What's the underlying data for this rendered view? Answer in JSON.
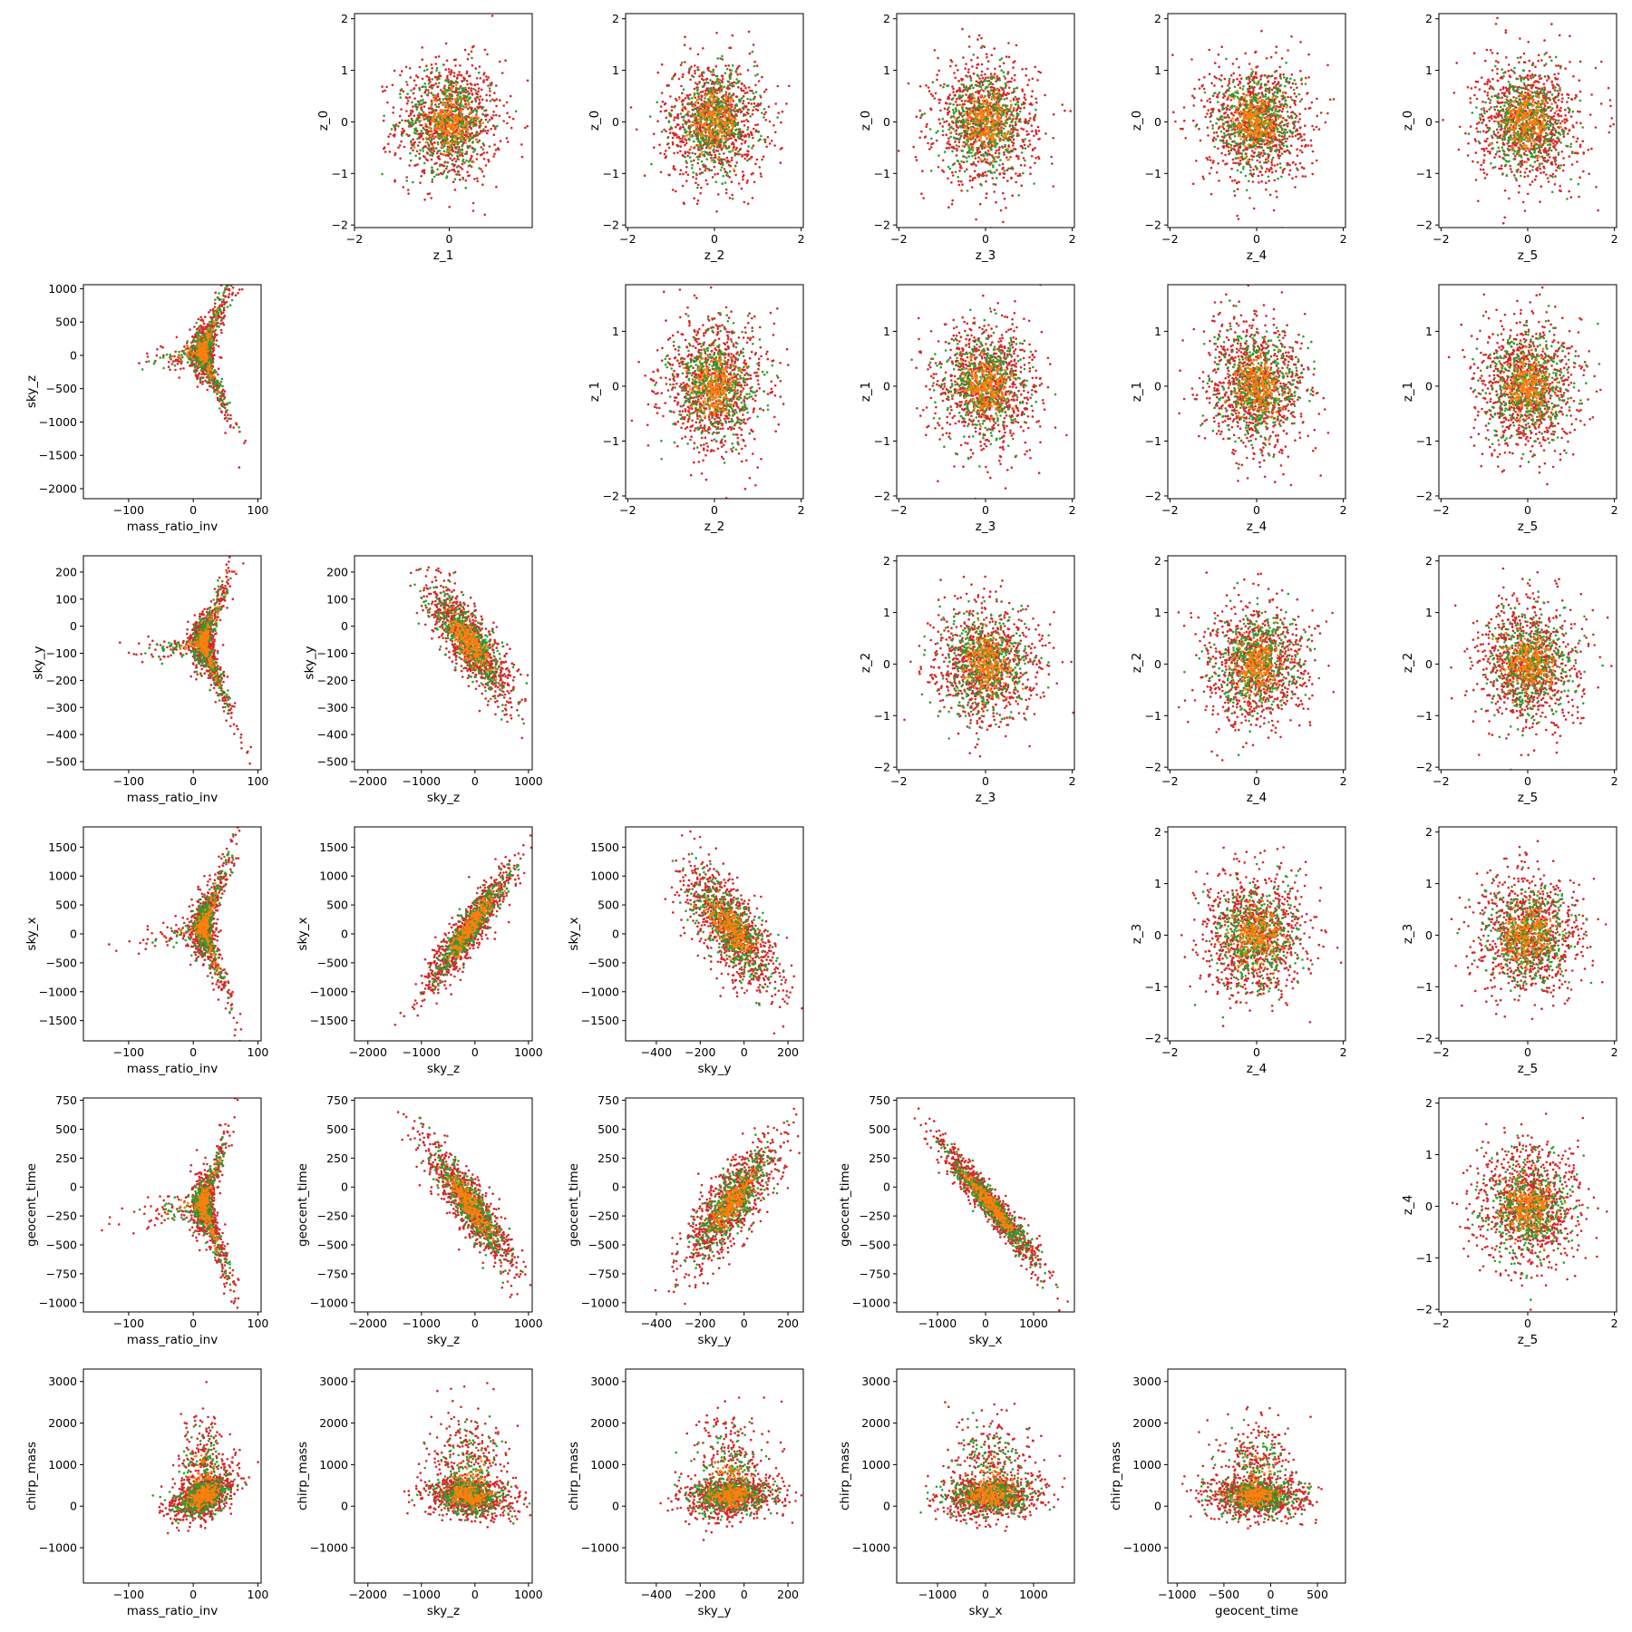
{
  "figure": {
    "type": "scatter",
    "layout": "pair-plot grid, 6 rows x 6 columns; diagonal panels empty",
    "series_colors": {
      "green": "#2ca02c",
      "orange": "#ff7f0e",
      "red": "#d62728"
    },
    "grid": false
  },
  "chart_data": [
    {
      "type": "scatter",
      "row": 0,
      "col": 1,
      "xlabel": "z_1",
      "ylabel": "z_0",
      "xlim": [
        -2,
        1.75
      ],
      "ylim": [
        -2.05,
        2.1
      ],
      "xticks": [
        -2,
        0
      ],
      "yticks": [
        -2,
        -1,
        0,
        1,
        2
      ],
      "x_mean": 0,
      "y_mean": 0,
      "x_spread": 0.55,
      "y_spread": 0.6,
      "rho": 0,
      "shape": "isotropic-gaussian"
    },
    {
      "type": "scatter",
      "row": 0,
      "col": 2,
      "xlabel": "z_2",
      "ylabel": "z_0",
      "xlim": [
        -2.05,
        2.05
      ],
      "ylim": [
        -2.05,
        2.1
      ],
      "xticks": [
        -2,
        0,
        2
      ],
      "yticks": [
        -2,
        -1,
        0,
        1,
        2
      ],
      "x_mean": 0,
      "y_mean": 0,
      "x_spread": 0.6,
      "y_spread": 0.6,
      "rho": 0,
      "shape": "isotropic-gaussian"
    },
    {
      "type": "scatter",
      "row": 0,
      "col": 3,
      "xlabel": "z_3",
      "ylabel": "z_0",
      "xlim": [
        -2.05,
        2.05
      ],
      "ylim": [
        -2.05,
        2.1
      ],
      "xticks": [
        -2,
        0,
        2
      ],
      "yticks": [
        -2,
        -1,
        0,
        1,
        2
      ],
      "x_mean": 0,
      "y_mean": 0,
      "x_spread": 0.6,
      "y_spread": 0.6,
      "rho": 0,
      "shape": "isotropic-gaussian"
    },
    {
      "type": "scatter",
      "row": 0,
      "col": 4,
      "xlabel": "z_4",
      "ylabel": "z_0",
      "xlim": [
        -2.05,
        2.05
      ],
      "ylim": [
        -2.05,
        2.1
      ],
      "xticks": [
        -2,
        0,
        2
      ],
      "yticks": [
        -2,
        -1,
        0,
        1,
        2
      ],
      "x_mean": 0,
      "y_mean": 0,
      "x_spread": 0.6,
      "y_spread": 0.6,
      "rho": 0,
      "shape": "isotropic-gaussian"
    },
    {
      "type": "scatter",
      "row": 0,
      "col": 5,
      "xlabel": "z_5",
      "ylabel": "z_0",
      "xlim": [
        -2.05,
        2.05
      ],
      "ylim": [
        -2.05,
        2.1
      ],
      "xticks": [
        -2,
        0,
        2
      ],
      "yticks": [
        -2,
        -1,
        0,
        1,
        2
      ],
      "x_mean": 0,
      "y_mean": 0,
      "x_spread": 0.6,
      "y_spread": 0.6,
      "rho": 0,
      "shape": "isotropic-gaussian"
    },
    {
      "type": "scatter",
      "row": 1,
      "col": 0,
      "xlabel": "mass_ratio_inv",
      "ylabel": "sky_z",
      "xlim": [
        -170,
        105
      ],
      "ylim": [
        -2150,
        1060
      ],
      "xticks": [
        -100,
        0,
        100
      ],
      "yticks": [
        -2000,
        -1500,
        -1000,
        -500,
        0,
        500,
        1000
      ],
      "x_mean": 15,
      "y_mean": 50,
      "x_spread": 25,
      "y_spread": 430,
      "rho": 0.1,
      "shape": "three-arm"
    },
    {
      "type": "scatter",
      "row": 1,
      "col": 2,
      "xlabel": "z_2",
      "ylabel": "z_1",
      "xlim": [
        -2.05,
        2.05
      ],
      "ylim": [
        -2.05,
        1.85
      ],
      "xticks": [
        -2,
        0,
        2
      ],
      "yticks": [
        -2,
        -1,
        0,
        1
      ],
      "x_mean": 0,
      "y_mean": 0,
      "x_spread": 0.6,
      "y_spread": 0.6,
      "rho": 0,
      "shape": "isotropic-gaussian"
    },
    {
      "type": "scatter",
      "row": 1,
      "col": 3,
      "xlabel": "z_3",
      "ylabel": "z_1",
      "xlim": [
        -2.05,
        2.05
      ],
      "ylim": [
        -2.05,
        1.85
      ],
      "xticks": [
        -2,
        0,
        2
      ],
      "yticks": [
        -2,
        -1,
        0,
        1
      ],
      "x_mean": 0,
      "y_mean": 0,
      "x_spread": 0.6,
      "y_spread": 0.6,
      "rho": 0,
      "shape": "isotropic-gaussian"
    },
    {
      "type": "scatter",
      "row": 1,
      "col": 4,
      "xlabel": "z_4",
      "ylabel": "z_1",
      "xlim": [
        -2.05,
        2.05
      ],
      "ylim": [
        -2.05,
        1.85
      ],
      "xticks": [
        -2,
        0,
        2
      ],
      "yticks": [
        -2,
        -1,
        0,
        1
      ],
      "x_mean": 0,
      "y_mean": 0,
      "x_spread": 0.6,
      "y_spread": 0.6,
      "rho": 0,
      "shape": "isotropic-gaussian"
    },
    {
      "type": "scatter",
      "row": 1,
      "col": 5,
      "xlabel": "z_5",
      "ylabel": "z_1",
      "xlim": [
        -2.05,
        2.05
      ],
      "ylim": [
        -2.05,
        1.85
      ],
      "xticks": [
        -2,
        0,
        2
      ],
      "yticks": [
        -2,
        -1,
        0,
        1
      ],
      "x_mean": 0,
      "y_mean": 0,
      "x_spread": 0.6,
      "y_spread": 0.6,
      "rho": 0,
      "shape": "isotropic-gaussian"
    },
    {
      "type": "scatter",
      "row": 2,
      "col": 0,
      "xlabel": "mass_ratio_inv",
      "ylabel": "sky_y",
      "xlim": [
        -170,
        105
      ],
      "ylim": [
        -530,
        260
      ],
      "xticks": [
        -100,
        0,
        100
      ],
      "yticks": [
        -500,
        -400,
        -300,
        -200,
        -100,
        0,
        100,
        200
      ],
      "x_mean": 15,
      "y_mean": -60,
      "x_spread": 25,
      "y_spread": 110,
      "rho": -0.5,
      "shape": "three-arm"
    },
    {
      "type": "scatter",
      "row": 2,
      "col": 1,
      "xlabel": "sky_z",
      "ylabel": "sky_y",
      "xlim": [
        -2250,
        1070
      ],
      "ylim": [
        -530,
        260
      ],
      "xticks": [
        -2000,
        -1000,
        0,
        1000
      ],
      "yticks": [
        -500,
        -400,
        -300,
        -200,
        -100,
        0,
        100,
        200
      ],
      "x_mean": -100,
      "y_mean": -60,
      "x_spread": 420,
      "y_spread": 110,
      "rho": -0.8,
      "shape": "correlated"
    },
    {
      "type": "scatter",
      "row": 2,
      "col": 3,
      "xlabel": "z_3",
      "ylabel": "z_2",
      "xlim": [
        -2.05,
        2.05
      ],
      "ylim": [
        -2.05,
        2.1
      ],
      "xticks": [
        -2,
        0,
        2
      ],
      "yticks": [
        -2,
        -1,
        0,
        1,
        2
      ],
      "x_mean": 0,
      "y_mean": 0,
      "x_spread": 0.6,
      "y_spread": 0.6,
      "rho": 0,
      "shape": "isotropic-gaussian"
    },
    {
      "type": "scatter",
      "row": 2,
      "col": 4,
      "xlabel": "z_4",
      "ylabel": "z_2",
      "xlim": [
        -2.05,
        2.05
      ],
      "ylim": [
        -2.05,
        2.1
      ],
      "xticks": [
        -2,
        0,
        2
      ],
      "yticks": [
        -2,
        -1,
        0,
        1,
        2
      ],
      "x_mean": 0,
      "y_mean": 0,
      "x_spread": 0.6,
      "y_spread": 0.6,
      "rho": 0,
      "shape": "isotropic-gaussian"
    },
    {
      "type": "scatter",
      "row": 2,
      "col": 5,
      "xlabel": "z_5",
      "ylabel": "z_2",
      "xlim": [
        -2.05,
        2.05
      ],
      "ylim": [
        -2.05,
        2.1
      ],
      "xticks": [
        -2,
        0,
        2
      ],
      "yticks": [
        -2,
        -1,
        0,
        1,
        2
      ],
      "x_mean": 0,
      "y_mean": 0,
      "x_spread": 0.6,
      "y_spread": 0.6,
      "rho": 0,
      "shape": "isotropic-gaussian"
    },
    {
      "type": "scatter",
      "row": 3,
      "col": 0,
      "xlabel": "mass_ratio_inv",
      "ylabel": "sky_x",
      "xlim": [
        -170,
        105
      ],
      "ylim": [
        -1850,
        1850
      ],
      "xticks": [
        -100,
        0,
        100
      ],
      "yticks": [
        -1500,
        -1000,
        -500,
        0,
        500,
        1000,
        1500
      ],
      "x_mean": 15,
      "y_mean": 100,
      "x_spread": 25,
      "y_spread": 550,
      "rho": 0.2,
      "shape": "three-arm"
    },
    {
      "type": "scatter",
      "row": 3,
      "col": 1,
      "xlabel": "sky_z",
      "ylabel": "sky_x",
      "xlim": [
        -2250,
        1070
      ],
      "ylim": [
        -1850,
        1850
      ],
      "xticks": [
        -2000,
        -1000,
        0,
        1000
      ],
      "yticks": [
        -1500,
        -1000,
        -500,
        0,
        500,
        1000,
        1500
      ],
      "x_mean": -100,
      "y_mean": 100,
      "x_spread": 420,
      "y_spread": 550,
      "rho": 0.92,
      "shape": "correlated"
    },
    {
      "type": "scatter",
      "row": 3,
      "col": 2,
      "xlabel": "sky_y",
      "ylabel": "sky_x",
      "xlim": [
        -540,
        270
      ],
      "ylim": [
        -1850,
        1850
      ],
      "xticks": [
        -400,
        -200,
        0,
        200
      ],
      "yticks": [
        -1500,
        -1000,
        -500,
        0,
        500,
        1000,
        1500
      ],
      "x_mean": -60,
      "y_mean": 100,
      "x_spread": 110,
      "y_spread": 550,
      "rho": -0.7,
      "shape": "correlated"
    },
    {
      "type": "scatter",
      "row": 3,
      "col": 4,
      "xlabel": "z_4",
      "ylabel": "z_3",
      "xlim": [
        -2.05,
        2.05
      ],
      "ylim": [
        -2.05,
        2.1
      ],
      "xticks": [
        -2,
        0,
        2
      ],
      "yticks": [
        -2,
        -1,
        0,
        1,
        2
      ],
      "x_mean": 0,
      "y_mean": 0,
      "x_spread": 0.6,
      "y_spread": 0.6,
      "rho": 0,
      "shape": "isotropic-gaussian"
    },
    {
      "type": "scatter",
      "row": 3,
      "col": 5,
      "xlabel": "z_5",
      "ylabel": "z_3",
      "xlim": [
        -2.05,
        2.05
      ],
      "ylim": [
        -2.05,
        2.1
      ],
      "xticks": [
        -2,
        0,
        2
      ],
      "yticks": [
        -2,
        -1,
        0,
        1,
        2
      ],
      "x_mean": 0,
      "y_mean": 0,
      "x_spread": 0.6,
      "y_spread": 0.6,
      "rho": 0,
      "shape": "isotropic-gaussian"
    },
    {
      "type": "scatter",
      "row": 4,
      "col": 0,
      "xlabel": "mass_ratio_inv",
      "ylabel": "geocent_time",
      "xlim": [
        -170,
        105
      ],
      "ylim": [
        -1080,
        770
      ],
      "xticks": [
        -100,
        0,
        100
      ],
      "yticks": [
        -1000,
        -750,
        -500,
        -250,
        0,
        250,
        500,
        750
      ],
      "x_mean": 15,
      "y_mean": -150,
      "x_spread": 25,
      "y_spread": 280,
      "rho": -0.3,
      "shape": "three-arm"
    },
    {
      "type": "scatter",
      "row": 4,
      "col": 1,
      "xlabel": "sky_z",
      "ylabel": "geocent_time",
      "xlim": [
        -2250,
        1070
      ],
      "ylim": [
        -1080,
        770
      ],
      "xticks": [
        -2000,
        -1000,
        0,
        1000
      ],
      "yticks": [
        -1000,
        -750,
        -500,
        -250,
        0,
        250,
        500,
        750
      ],
      "x_mean": -100,
      "y_mean": -150,
      "x_spread": 420,
      "y_spread": 280,
      "rho": -0.88,
      "shape": "correlated"
    },
    {
      "type": "scatter",
      "row": 4,
      "col": 2,
      "xlabel": "sky_y",
      "ylabel": "geocent_time",
      "xlim": [
        -540,
        270
      ],
      "ylim": [
        -1080,
        770
      ],
      "xticks": [
        -400,
        -200,
        0,
        200
      ],
      "yticks": [
        -1000,
        -750,
        -500,
        -250,
        0,
        250,
        500,
        750
      ],
      "x_mean": -60,
      "y_mean": -150,
      "x_spread": 110,
      "y_spread": 280,
      "rho": 0.8,
      "shape": "correlated"
    },
    {
      "type": "scatter",
      "row": 4,
      "col": 3,
      "xlabel": "sky_x",
      "ylabel": "geocent_time",
      "xlim": [
        -1850,
        1850
      ],
      "ylim": [
        -1080,
        770
      ],
      "xticks": [
        -1000,
        0,
        1000
      ],
      "yticks": [
        -1000,
        -750,
        -500,
        -250,
        0,
        250,
        500,
        750
      ],
      "x_mean": 100,
      "y_mean": -150,
      "x_spread": 550,
      "y_spread": 280,
      "rho": -0.96,
      "shape": "correlated"
    },
    {
      "type": "scatter",
      "row": 4,
      "col": 5,
      "xlabel": "z_5",
      "ylabel": "z_4",
      "xlim": [
        -2.05,
        2.05
      ],
      "ylim": [
        -2.05,
        2.1
      ],
      "xticks": [
        -2,
        0,
        2
      ],
      "yticks": [
        -2,
        -1,
        0,
        1,
        2
      ],
      "x_mean": 0,
      "y_mean": 0,
      "x_spread": 0.6,
      "y_spread": 0.6,
      "rho": 0,
      "shape": "isotropic-gaussian"
    },
    {
      "type": "scatter",
      "row": 5,
      "col": 0,
      "xlabel": "mass_ratio_inv",
      "ylabel": "chirp_mass",
      "xlim": [
        -170,
        105
      ],
      "ylim": [
        -1850,
        3300
      ],
      "xticks": [
        -100,
        0,
        100
      ],
      "yticks": [
        -1000,
        0,
        1000,
        2000,
        3000
      ],
      "x_mean": 15,
      "y_mean": 250,
      "x_spread": 25,
      "y_spread": 450,
      "rho": 0.5,
      "shape": "skewed"
    },
    {
      "type": "scatter",
      "row": 5,
      "col": 1,
      "xlabel": "sky_z",
      "ylabel": "chirp_mass",
      "xlim": [
        -2250,
        1070
      ],
      "ylim": [
        -1850,
        3300
      ],
      "xticks": [
        -2000,
        -1000,
        0,
        1000
      ],
      "yticks": [
        -1000,
        0,
        1000,
        2000,
        3000
      ],
      "x_mean": -100,
      "y_mean": 250,
      "x_spread": 420,
      "y_spread": 450,
      "rho": -0.2,
      "shape": "skewed"
    },
    {
      "type": "scatter",
      "row": 5,
      "col": 2,
      "xlabel": "sky_y",
      "ylabel": "chirp_mass",
      "xlim": [
        -540,
        270
      ],
      "ylim": [
        -1850,
        3300
      ],
      "xticks": [
        -400,
        -200,
        0,
        200
      ],
      "yticks": [
        -1000,
        0,
        1000,
        2000,
        3000
      ],
      "x_mean": -60,
      "y_mean": 250,
      "x_spread": 110,
      "y_spread": 450,
      "rho": 0.1,
      "shape": "skewed"
    },
    {
      "type": "scatter",
      "row": 5,
      "col": 3,
      "xlabel": "sky_x",
      "ylabel": "chirp_mass",
      "xlim": [
        -1850,
        1850
      ],
      "ylim": [
        -1850,
        3300
      ],
      "xticks": [
        -1000,
        0,
        1000
      ],
      "yticks": [
        -1000,
        0,
        1000,
        2000,
        3000
      ],
      "x_mean": 100,
      "y_mean": 250,
      "x_spread": 550,
      "y_spread": 450,
      "rho": 0,
      "shape": "skewed"
    },
    {
      "type": "scatter",
      "row": 5,
      "col": 4,
      "xlabel": "geocent_time",
      "ylabel": "chirp_mass",
      "xlim": [
        -1100,
        800
      ],
      "ylim": [
        -1850,
        3300
      ],
      "xticks": [
        -1000,
        -500,
        0,
        500
      ],
      "yticks": [
        -1000,
        0,
        1000,
        2000,
        3000
      ],
      "x_mean": -150,
      "y_mean": 250,
      "x_spread": 280,
      "y_spread": 450,
      "rho": -0.1,
      "shape": "skewed"
    }
  ]
}
